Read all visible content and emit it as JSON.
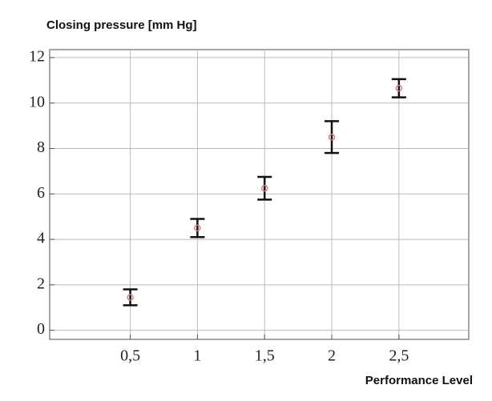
{
  "chart_data": {
    "type": "errorbar",
    "y_label": "Closing pressure [mm Hg]",
    "x_label": "Performance Level",
    "x": [
      0.5,
      1,
      1.5,
      2,
      2.5
    ],
    "values": [
      1.45,
      4.5,
      6.25,
      8.5,
      10.65
    ],
    "errors": [
      0.35,
      0.4,
      0.5,
      0.7,
      0.4
    ],
    "color": "#d08080",
    "error_color": "#111111",
    "xlim": [
      -0.1,
      3.02
    ],
    "ylim": [
      -0.4,
      12.35
    ],
    "xticks": [
      {
        "value": 0.5,
        "label": "0,5"
      },
      1,
      {
        "value": 1.5,
        "label": "1,5"
      },
      2,
      {
        "value": 2.5,
        "label": "2,5"
      }
    ],
    "yticks": [
      0,
      2,
      4,
      6,
      8,
      10,
      12
    ],
    "grid": true
  }
}
